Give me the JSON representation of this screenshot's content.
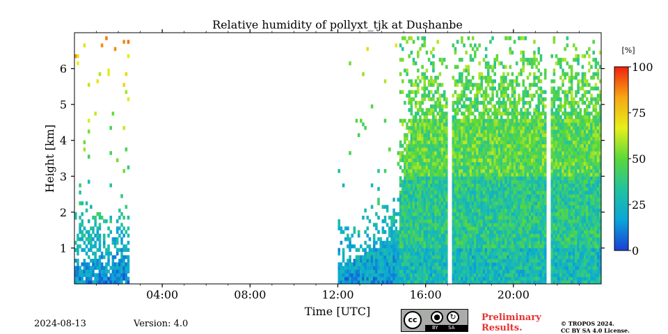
{
  "footer": {
    "date": "2024-08-13",
    "version": "Version: 4.0",
    "preliminary_line1": "Preliminary",
    "preliminary_line2": "Results.",
    "copyright_line1": "© TROPOS 2024.",
    "copyright_line2": "CC BY SA 4.0 License.",
    "license_badge": {
      "cc": "cc",
      "by": "BY",
      "sa": "SA"
    }
  },
  "chart_data": {
    "type": "heatmap",
    "title": "Relative humidity of pollyxt_tjk at Dushanbe",
    "xlabel": "Time [UTC]",
    "ylabel": "Height [km]",
    "xlim": [
      0,
      24
    ],
    "ylim": [
      0,
      7
    ],
    "x_ticks": [
      {
        "value": 4,
        "label": "04:00"
      },
      {
        "value": 8,
        "label": "08:00"
      },
      {
        "value": 12,
        "label": "12:00"
      },
      {
        "value": 16,
        "label": "16:00"
      },
      {
        "value": 20,
        "label": "20:00"
      }
    ],
    "y_ticks": [
      {
        "value": 1,
        "label": "1"
      },
      {
        "value": 2,
        "label": "2"
      },
      {
        "value": 3,
        "label": "3"
      },
      {
        "value": 4,
        "label": "4"
      },
      {
        "value": 5,
        "label": "5"
      },
      {
        "value": 6,
        "label": "6"
      }
    ],
    "colorbar": {
      "unit": "[%]",
      "range": [
        0,
        100
      ],
      "ticks": [
        {
          "value": 0,
          "label": "0"
        },
        {
          "value": 25,
          "label": "25"
        },
        {
          "value": 50,
          "label": "50"
        },
        {
          "value": 75,
          "label": "75"
        },
        {
          "value": 100,
          "label": "100"
        }
      ],
      "colormap": [
        "#1c3fd6",
        "#0aa6d8",
        "#22c2a0",
        "#5bd83a",
        "#e6ef1a",
        "#f7a714",
        "#f0210f"
      ]
    },
    "measurement_periods_utc": [
      [
        0.0,
        2.5
      ],
      [
        12.0,
        24.0
      ]
    ],
    "no_data_gaps_utc": [
      [
        17.0,
        17.15
      ],
      [
        21.55,
        21.7
      ]
    ],
    "regimes": [
      {
        "t_start": 0.0,
        "t_end": 2.5,
        "h_max_km": 6.8,
        "rh_near_surface_pct": 15,
        "rh_aloft_pct": 45
      },
      {
        "t_start": 12.0,
        "t_end": 14.8,
        "h_max_km": 6.8,
        "rh_near_surface_pct": 15,
        "rh_aloft_pct": 40
      },
      {
        "t_start": 14.8,
        "t_end": 24.0,
        "h_max_km": 6.8,
        "rh_boundary_layer_pct": 35,
        "rh_upper_layer_pct": 55,
        "boundary_layer_top_km": 4.6
      }
    ]
  }
}
